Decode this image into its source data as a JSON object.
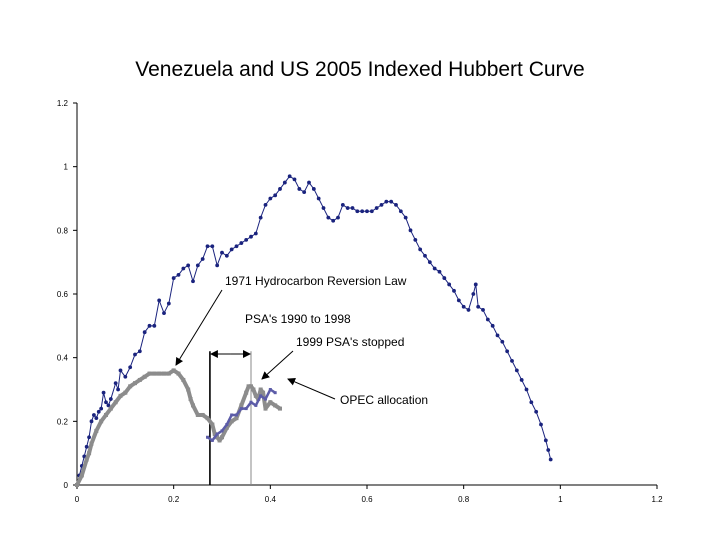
{
  "chart_data": {
    "type": "line",
    "title": "Venezuela and US 2005 Indexed Hubbert Curve",
    "xlim": [
      0,
      1.2
    ],
    "ylim": [
      0,
      1.2
    ],
    "x_ticks": [
      "0",
      "0.2",
      "0.4",
      "0.6",
      "0.8",
      "1",
      "1.2"
    ],
    "y_ticks": [
      "0",
      "0.2",
      "0.4",
      "0.6",
      "0.8",
      "1",
      "1.2"
    ],
    "grid": false,
    "colors": {
      "us": "#1a237e",
      "venezuela": "#8c8c8c",
      "venezuela_alt": "#5c5ca8",
      "axis": "#000000"
    },
    "series": [
      {
        "key": "us",
        "points": [
          [
            0.0,
            0.0
          ],
          [
            0.005,
            0.03
          ],
          [
            0.01,
            0.06
          ],
          [
            0.015,
            0.09
          ],
          [
            0.02,
            0.12
          ],
          [
            0.025,
            0.15
          ],
          [
            0.03,
            0.2
          ],
          [
            0.035,
            0.22
          ],
          [
            0.04,
            0.21
          ],
          [
            0.045,
            0.23
          ],
          [
            0.05,
            0.24
          ],
          [
            0.055,
            0.29
          ],
          [
            0.06,
            0.26
          ],
          [
            0.065,
            0.25
          ],
          [
            0.07,
            0.27
          ],
          [
            0.08,
            0.32
          ],
          [
            0.085,
            0.3
          ],
          [
            0.09,
            0.36
          ],
          [
            0.1,
            0.34
          ],
          [
            0.11,
            0.37
          ],
          [
            0.12,
            0.41
          ],
          [
            0.13,
            0.42
          ],
          [
            0.14,
            0.48
          ],
          [
            0.15,
            0.5
          ],
          [
            0.16,
            0.5
          ],
          [
            0.17,
            0.58
          ],
          [
            0.18,
            0.54
          ],
          [
            0.19,
            0.57
          ],
          [
            0.2,
            0.65
          ],
          [
            0.21,
            0.66
          ],
          [
            0.22,
            0.68
          ],
          [
            0.23,
            0.69
          ],
          [
            0.24,
            0.64
          ],
          [
            0.25,
            0.69
          ],
          [
            0.26,
            0.71
          ],
          [
            0.27,
            0.75
          ],
          [
            0.28,
            0.75
          ],
          [
            0.29,
            0.69
          ],
          [
            0.3,
            0.73
          ],
          [
            0.31,
            0.72
          ],
          [
            0.32,
            0.74
          ],
          [
            0.33,
            0.75
          ],
          [
            0.34,
            0.76
          ],
          [
            0.35,
            0.77
          ],
          [
            0.36,
            0.78
          ],
          [
            0.37,
            0.79
          ],
          [
            0.38,
            0.84
          ],
          [
            0.39,
            0.88
          ],
          [
            0.4,
            0.9
          ],
          [
            0.41,
            0.91
          ],
          [
            0.42,
            0.93
          ],
          [
            0.43,
            0.95
          ],
          [
            0.44,
            0.97
          ],
          [
            0.45,
            0.96
          ],
          [
            0.46,
            0.93
          ],
          [
            0.47,
            0.92
          ],
          [
            0.48,
            0.95
          ],
          [
            0.49,
            0.93
          ],
          [
            0.5,
            0.9
          ],
          [
            0.51,
            0.87
          ],
          [
            0.52,
            0.84
          ],
          [
            0.53,
            0.83
          ],
          [
            0.54,
            0.84
          ],
          [
            0.55,
            0.88
          ],
          [
            0.56,
            0.87
          ],
          [
            0.57,
            0.87
          ],
          [
            0.58,
            0.86
          ],
          [
            0.59,
            0.86
          ],
          [
            0.6,
            0.86
          ],
          [
            0.61,
            0.86
          ],
          [
            0.62,
            0.87
          ],
          [
            0.63,
            0.88
          ],
          [
            0.64,
            0.89
          ],
          [
            0.65,
            0.89
          ],
          [
            0.66,
            0.88
          ],
          [
            0.67,
            0.86
          ],
          [
            0.68,
            0.84
          ],
          [
            0.69,
            0.8
          ],
          [
            0.7,
            0.77
          ],
          [
            0.71,
            0.74
          ],
          [
            0.72,
            0.72
          ],
          [
            0.73,
            0.7
          ],
          [
            0.74,
            0.68
          ],
          [
            0.75,
            0.67
          ],
          [
            0.76,
            0.65
          ],
          [
            0.77,
            0.63
          ],
          [
            0.78,
            0.61
          ],
          [
            0.79,
            0.58
          ],
          [
            0.8,
            0.56
          ],
          [
            0.81,
            0.55
          ],
          [
            0.82,
            0.6
          ],
          [
            0.825,
            0.63
          ],
          [
            0.83,
            0.56
          ],
          [
            0.84,
            0.55
          ],
          [
            0.85,
            0.52
          ],
          [
            0.86,
            0.5
          ],
          [
            0.87,
            0.47
          ],
          [
            0.88,
            0.45
          ],
          [
            0.89,
            0.42
          ],
          [
            0.9,
            0.39
          ],
          [
            0.91,
            0.36
          ],
          [
            0.92,
            0.33
          ],
          [
            0.93,
            0.3
          ],
          [
            0.94,
            0.26
          ],
          [
            0.95,
            0.23
          ],
          [
            0.96,
            0.19
          ],
          [
            0.97,
            0.14
          ],
          [
            0.975,
            0.11
          ],
          [
            0.98,
            0.08
          ]
        ]
      },
      {
        "key": "venezuela",
        "points": [
          [
            0.0,
            0.0
          ],
          [
            0.01,
            0.03
          ],
          [
            0.02,
            0.08
          ],
          [
            0.025,
            0.1
          ],
          [
            0.03,
            0.13
          ],
          [
            0.04,
            0.17
          ],
          [
            0.05,
            0.2
          ],
          [
            0.06,
            0.22
          ],
          [
            0.07,
            0.24
          ],
          [
            0.08,
            0.26
          ],
          [
            0.09,
            0.28
          ],
          [
            0.1,
            0.29
          ],
          [
            0.11,
            0.31
          ],
          [
            0.12,
            0.32
          ],
          [
            0.13,
            0.33
          ],
          [
            0.14,
            0.34
          ],
          [
            0.15,
            0.35
          ],
          [
            0.16,
            0.35
          ],
          [
            0.17,
            0.35
          ],
          [
            0.18,
            0.35
          ],
          [
            0.19,
            0.35
          ],
          [
            0.2,
            0.36
          ],
          [
            0.21,
            0.35
          ],
          [
            0.22,
            0.33
          ],
          [
            0.23,
            0.3
          ],
          [
            0.235,
            0.27
          ],
          [
            0.24,
            0.25
          ],
          [
            0.25,
            0.22
          ],
          [
            0.26,
            0.22
          ],
          [
            0.27,
            0.21
          ],
          [
            0.28,
            0.19
          ],
          [
            0.285,
            0.16
          ],
          [
            0.29,
            0.15
          ],
          [
            0.295,
            0.14
          ],
          [
            0.3,
            0.15
          ],
          [
            0.31,
            0.18
          ],
          [
            0.32,
            0.2
          ],
          [
            0.33,
            0.21
          ],
          [
            0.34,
            0.25
          ],
          [
            0.35,
            0.29
          ],
          [
            0.355,
            0.31
          ],
          [
            0.36,
            0.31
          ],
          [
            0.365,
            0.3
          ],
          [
            0.37,
            0.28
          ],
          [
            0.375,
            0.27
          ],
          [
            0.38,
            0.3
          ],
          [
            0.385,
            0.29
          ],
          [
            0.39,
            0.24
          ],
          [
            0.4,
            0.26
          ],
          [
            0.41,
            0.25
          ],
          [
            0.42,
            0.24
          ]
        ]
      },
      {
        "key": "venezuela_alt",
        "points": [
          [
            0.27,
            0.15
          ],
          [
            0.28,
            0.14
          ],
          [
            0.29,
            0.16
          ],
          [
            0.3,
            0.17
          ],
          [
            0.31,
            0.19
          ],
          [
            0.32,
            0.22
          ],
          [
            0.33,
            0.22
          ],
          [
            0.34,
            0.24
          ],
          [
            0.35,
            0.24
          ],
          [
            0.36,
            0.26
          ],
          [
            0.37,
            0.25
          ],
          [
            0.38,
            0.28
          ],
          [
            0.39,
            0.27
          ],
          [
            0.4,
            0.3
          ],
          [
            0.41,
            0.29
          ]
        ]
      }
    ],
    "annotations": [
      {
        "text": "1971 Hydrocarbon Reversion Law"
      },
      {
        "text": "PSA's 1990 to 1998"
      },
      {
        "text": "1999 PSA's stopped"
      },
      {
        "text": "OPEC allocation"
      }
    ],
    "marker_lines": [
      {
        "x": 0.275,
        "y_top": 0.42,
        "color": "#000000"
      },
      {
        "x": 0.36,
        "y_top": 0.42,
        "color": "#888888"
      }
    ]
  }
}
